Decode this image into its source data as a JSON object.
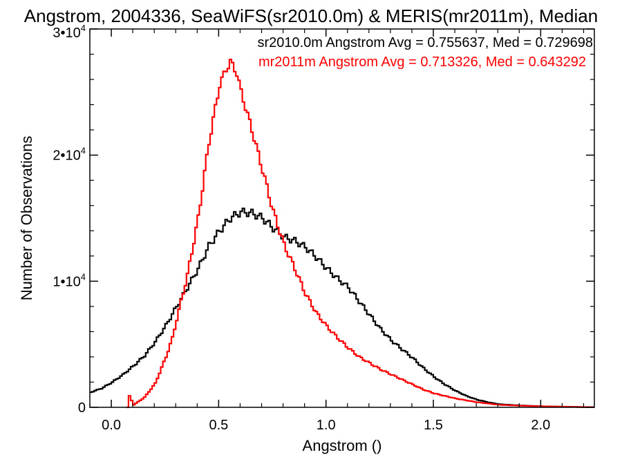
{
  "chart_data": {
    "type": "line",
    "step": true,
    "title": "Angstrom, 2004336, SeaWiFS(sr2010.0m) & MERIS(mr2011m), Median",
    "xlabel": "Angstrom ()",
    "ylabel": "Number of Observations",
    "xlim": [
      -0.1,
      2.25
    ],
    "ylim": [
      0,
      30000
    ],
    "x_ticks": [
      0.0,
      0.5,
      1.0,
      1.5,
      2.0
    ],
    "x_tick_labels": [
      "0.0",
      "0.5",
      "1.0",
      "1.5",
      "2.0"
    ],
    "y_ticks": [
      0,
      10000,
      20000,
      30000
    ],
    "y_tick_labels": [
      {
        "base": "0",
        "exp": ""
      },
      {
        "base": "1•10",
        "exp": "4"
      },
      {
        "base": "2•10",
        "exp": "4"
      },
      {
        "base": "3•10",
        "exp": "4"
      }
    ],
    "grid": false,
    "legend_position": "top-right",
    "series": [
      {
        "name": "sr2010.0m Angstrom Avg = 0.755637, Med = 0.729698",
        "color": "#000000",
        "x": [
          -0.1,
          -0.05,
          0.0,
          0.05,
          0.1,
          0.15,
          0.2,
          0.25,
          0.3,
          0.35,
          0.4,
          0.45,
          0.5,
          0.55,
          0.6,
          0.65,
          0.7,
          0.75,
          0.8,
          0.85,
          0.9,
          0.95,
          1.0,
          1.05,
          1.1,
          1.15,
          1.2,
          1.25,
          1.3,
          1.35,
          1.4,
          1.45,
          1.5,
          1.55,
          1.6,
          1.65,
          1.7,
          1.75,
          1.8,
          1.9,
          2.0,
          2.1,
          2.2,
          2.25
        ],
        "y": [
          1200,
          1500,
          2000,
          2600,
          3300,
          4100,
          5200,
          6500,
          8000,
          9500,
          11000,
          12800,
          14000,
          15000,
          15500,
          15400,
          15000,
          14200,
          13500,
          13200,
          12700,
          11900,
          11000,
          10200,
          9500,
          8400,
          7300,
          6200,
          5300,
          4600,
          3900,
          3100,
          2400,
          1800,
          1300,
          900,
          600,
          400,
          250,
          150,
          80,
          50,
          20,
          10
        ]
      },
      {
        "name": "mr2011m Angstrom Avg = 0.713326, Med = 0.643292",
        "color": "#ff0000",
        "x": [
          0.07,
          0.08,
          0.1,
          0.15,
          0.2,
          0.25,
          0.28,
          0.3,
          0.35,
          0.4,
          0.45,
          0.5,
          0.53,
          0.55,
          0.58,
          0.6,
          0.65,
          0.7,
          0.75,
          0.8,
          0.85,
          0.9,
          0.95,
          1.0,
          1.05,
          1.1,
          1.15,
          1.2,
          1.25,
          1.3,
          1.35,
          1.4,
          1.45,
          1.5,
          1.55,
          1.6,
          1.7,
          1.8,
          1.9,
          2.0,
          2.1,
          2.2,
          2.25
        ],
        "y": [
          0,
          900,
          200,
          800,
          1900,
          4000,
          5500,
          7000,
          10500,
          15000,
          21000,
          25600,
          26800,
          27400,
          26500,
          25000,
          22000,
          18800,
          15500,
          12900,
          11000,
          9000,
          7500,
          6400,
          5500,
          4700,
          4000,
          3500,
          3000,
          2600,
          2200,
          1800,
          1400,
          1100,
          900,
          700,
          400,
          200,
          130,
          80,
          50,
          20,
          10
        ]
      }
    ]
  }
}
